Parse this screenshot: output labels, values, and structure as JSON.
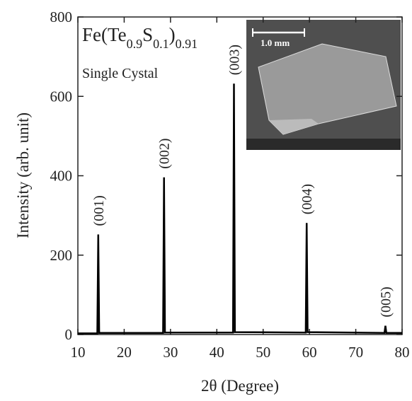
{
  "chart_data": {
    "type": "line",
    "formula": [
      "Fe(Te",
      "0.9",
      "S",
      "0.1",
      ")",
      "0.91"
    ],
    "subtitle": "Single Cystal",
    "xlabel": "2θ (Degree)",
    "ylabel": "Intensity (arb. unit)",
    "inset_scale_label": "1.0 mm",
    "x": [
      10,
      14.2,
      14.4,
      14.6,
      28.4,
      28.6,
      28.8,
      43.5,
      43.7,
      43.9,
      59.2,
      59.4,
      59.6,
      76.2,
      76.4,
      76.6,
      80
    ],
    "values": [
      3,
      3,
      252,
      4,
      4,
      396,
      5,
      5,
      632,
      6,
      5,
      281,
      6,
      4,
      22,
      4,
      4
    ],
    "color": "#000000",
    "peak_labels": [
      "(001)",
      "(002)",
      "(003)",
      "(004)",
      "(005)"
    ],
    "peak_index": [
      2,
      5,
      8,
      11,
      14
    ],
    "xlim": [
      10,
      80
    ],
    "xticks": [
      10,
      20,
      30,
      40,
      50,
      60,
      70,
      80
    ],
    "ylim": [
      0,
      800
    ],
    "yticks": [
      0,
      200,
      400,
      600,
      800
    ],
    "grid": false
  }
}
